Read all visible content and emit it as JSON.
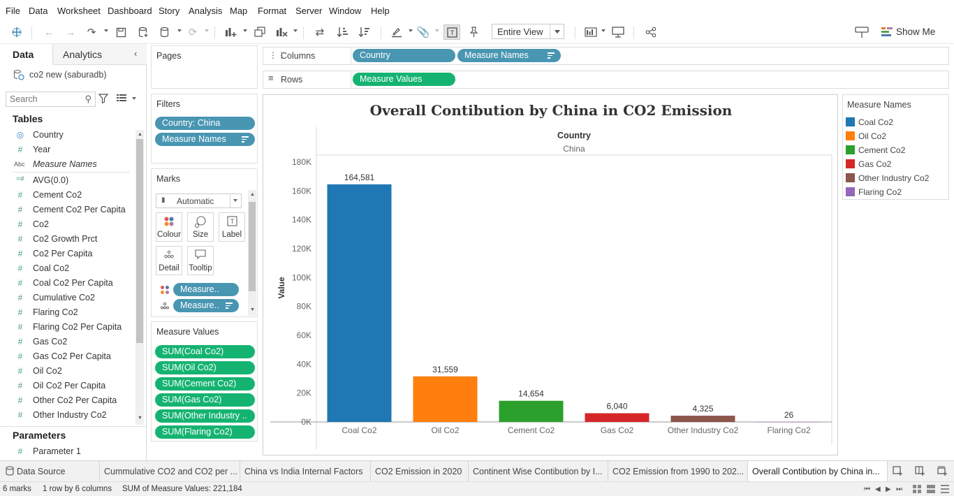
{
  "menu": [
    "File",
    "Data",
    "Worksheet",
    "Dashboard",
    "Story",
    "Analysis",
    "Map",
    "Format",
    "Server",
    "Window",
    "Help"
  ],
  "toolbar": {
    "fit_value": "Entire View",
    "show_me_label": "Show Me"
  },
  "data_pane": {
    "tabs": [
      "Data",
      "Analytics"
    ],
    "datasource": "co2 new (saburadb)",
    "search_placeholder": "Search",
    "tables_heading": "Tables",
    "fields": [
      {
        "name": "Country",
        "type": "geo"
      },
      {
        "name": "Year",
        "type": "measure"
      },
      {
        "name": "Measure Names",
        "type": "text"
      },
      {
        "name": "AVG(0.0)",
        "type": "measure"
      },
      {
        "name": "Cement Co2",
        "type": "measure"
      },
      {
        "name": "Cement Co2 Per Capita",
        "type": "measure"
      },
      {
        "name": "Co2",
        "type": "measure"
      },
      {
        "name": "Co2 Growth Prct",
        "type": "measure"
      },
      {
        "name": "Co2 Per Capita",
        "type": "measure"
      },
      {
        "name": "Coal Co2",
        "type": "measure"
      },
      {
        "name": "Coal Co2 Per Capita",
        "type": "measure"
      },
      {
        "name": "Cumulative Co2",
        "type": "measure"
      },
      {
        "name": "Flaring Co2",
        "type": "measure"
      },
      {
        "name": "Flaring Co2 Per Capita",
        "type": "measure"
      },
      {
        "name": "Gas Co2",
        "type": "measure"
      },
      {
        "name": "Gas Co2 Per Capita",
        "type": "measure"
      },
      {
        "name": "Oil Co2",
        "type": "measure"
      },
      {
        "name": "Oil Co2 Per Capita",
        "type": "measure"
      },
      {
        "name": "Other Co2 Per Capita",
        "type": "measure"
      },
      {
        "name": "Other Industry Co2",
        "type": "measure"
      }
    ],
    "parameters_heading": "Parameters",
    "parameters": [
      "Parameter 1"
    ]
  },
  "cards": {
    "pages_title": "Pages",
    "filters_title": "Filters",
    "filters": [
      "Country: China",
      "Measure Names"
    ],
    "marks_title": "Marks",
    "mark_type": "Automatic",
    "mark_buttons": [
      "Colour",
      "Size",
      "Label",
      "Detail",
      "Tooltip"
    ],
    "mark_pills": [
      "Measure..",
      "Measure.."
    ],
    "measure_values_title": "Measure Values",
    "measure_values": [
      "SUM(Coal Co2)",
      "SUM(Oil Co2)",
      "SUM(Cement Co2)",
      "SUM(Gas Co2)",
      "SUM(Other Industry ..",
      "SUM(Flaring Co2)"
    ]
  },
  "shelves": {
    "columns_label": "Columns",
    "columns_pills": [
      "Country",
      "Measure Names"
    ],
    "rows_label": "Rows",
    "rows_pills": [
      "Measure Values"
    ]
  },
  "view": {
    "title": "Overall Contibution by China in CO2 Emission",
    "column_header": "Country",
    "column_value": "China"
  },
  "chart_data": {
    "type": "bar",
    "title": "Overall Contibution by China in CO2 Emission",
    "xlabel": "",
    "ylabel": "Value",
    "ylim": [
      0,
      180000
    ],
    "y_ticks": [
      "0K",
      "20K",
      "40K",
      "60K",
      "80K",
      "100K",
      "120K",
      "140K",
      "160K",
      "180K"
    ],
    "categories": [
      "Coal Co2",
      "Oil Co2",
      "Cement Co2",
      "Gas Co2",
      "Other Industry Co2",
      "Flaring Co2"
    ],
    "values": [
      164581,
      31559,
      14654,
      6040,
      4325,
      26
    ],
    "data_labels": [
      "164,581",
      "31,559",
      "14,654",
      "6,040",
      "4,325",
      "26"
    ],
    "colors": [
      "#1f77b4",
      "#ff7f0e",
      "#2ca02c",
      "#d62728",
      "#8c564b",
      "#9467bd"
    ],
    "grid": false,
    "legend_position": "right"
  },
  "legend": {
    "title": "Measure Names",
    "items": [
      {
        "label": "Coal Co2",
        "color": "#1f77b4"
      },
      {
        "label": "Oil Co2",
        "color": "#ff7f0e"
      },
      {
        "label": "Cement Co2",
        "color": "#2ca02c"
      },
      {
        "label": "Gas Co2",
        "color": "#d62728"
      },
      {
        "label": "Other Industry Co2",
        "color": "#8c564b"
      },
      {
        "label": "Flaring Co2",
        "color": "#9467bd"
      }
    ]
  },
  "sheet_tabs": {
    "data_source": "Data Source",
    "tabs": [
      "Cummulative CO2 and CO2 per ...",
      "China vs India Internal Factors",
      "CO2 Emission in 2020",
      "Continent Wise Contibution by I...",
      "CO2 Emission from 1990 to 202...",
      "Overall Contibution by China in..."
    ],
    "active_index": 5
  },
  "status": {
    "marks": "6 marks",
    "layout": "1 row by 6 columns",
    "sum": "SUM of Measure Values: 221,184"
  }
}
